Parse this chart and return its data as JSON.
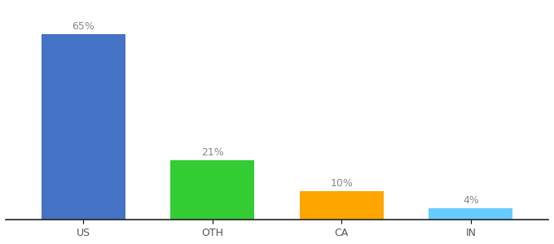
{
  "categories": [
    "US",
    "OTH",
    "CA",
    "IN"
  ],
  "values": [
    65,
    21,
    10,
    4
  ],
  "bar_colors": [
    "#4472C4",
    "#33CC33",
    "#FFA500",
    "#66CCFF"
  ],
  "labels": [
    "65%",
    "21%",
    "10%",
    "4%"
  ],
  "ylim": [
    0,
    75
  ],
  "background_color": "#ffffff",
  "label_fontsize": 9,
  "tick_fontsize": 9,
  "bar_width": 0.65,
  "label_color": "#888888",
  "tick_color": "#555555",
  "spine_color": "#222222"
}
